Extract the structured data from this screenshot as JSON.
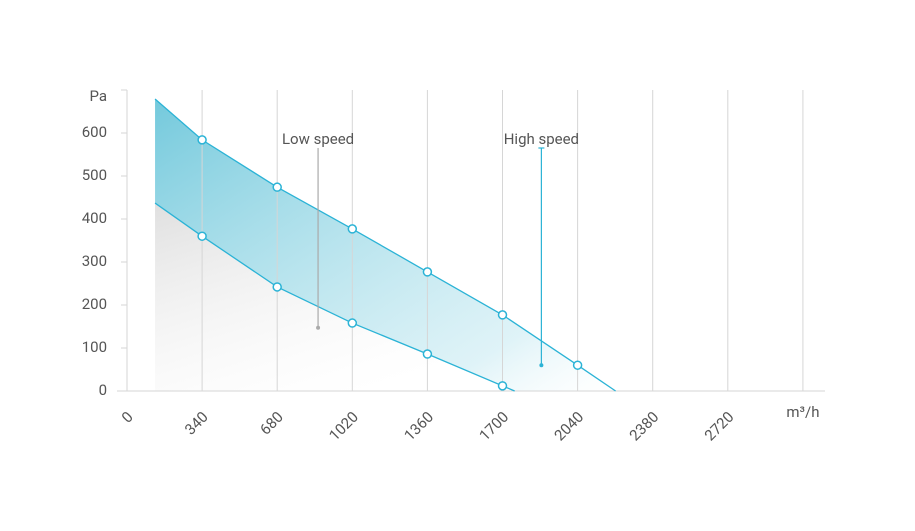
{
  "chart_data": {
    "type": "line",
    "xlim": [
      0,
      3160
    ],
    "ylim": [
      0,
      700
    ],
    "xticks": [
      0,
      340,
      680,
      1020,
      1360,
      1700,
      2040,
      2380,
      2720,
      {
        "value": 3060,
        "label": "m³/h"
      }
    ],
    "yticks": [
      0,
      100,
      200,
      300,
      400,
      500,
      600,
      {
        "value": 700,
        "label": "Pa"
      }
    ],
    "grid": true,
    "series": [
      {
        "name": "High speed",
        "color": "#2bb3d6",
        "x": [
          127,
          340,
          680,
          1020,
          1360,
          1700,
          2040,
          2212
        ],
        "values": [
          679,
          584,
          474,
          377,
          277,
          177,
          60,
          0
        ],
        "pointer": {
          "x": 1876,
          "y": 60
        }
      },
      {
        "name": "Low speed",
        "color": "#2bb3d6",
        "x": [
          127,
          340,
          680,
          1020,
          1360,
          1700,
          1755
        ],
        "values": [
          437,
          360,
          242,
          158,
          86,
          12,
          0
        ],
        "pointer": {
          "x": 865,
          "y": 147
        }
      }
    ]
  }
}
